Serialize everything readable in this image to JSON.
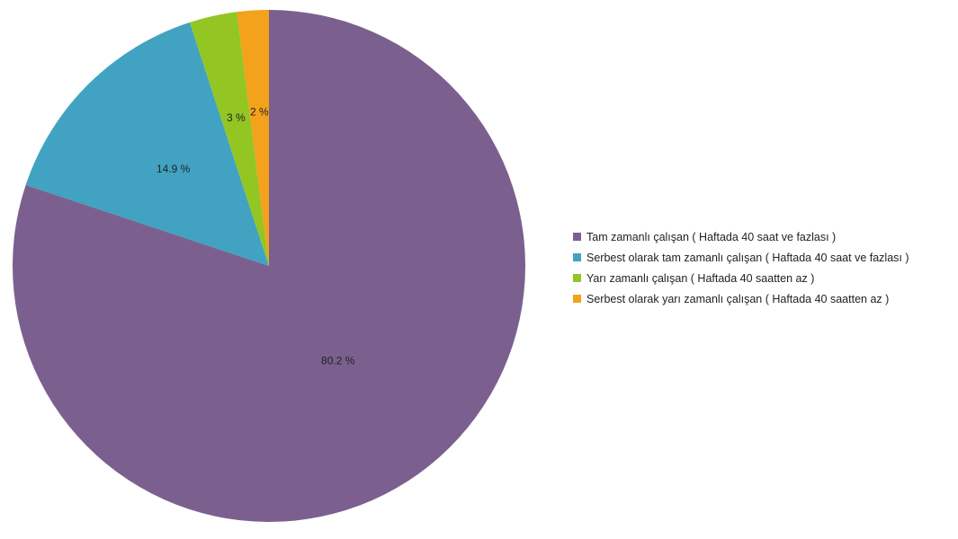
{
  "chart_data": {
    "type": "pie",
    "start_angle_deg": 0,
    "direction": "clockwise",
    "slices": [
      {
        "label": "Tam zamanlı çalışan ( Haftada 40 saat ve fazlası )",
        "value": 80.2,
        "value_label": "80.2 %",
        "color": "#7b608f"
      },
      {
        "label": "Serbest olarak tam zamanlı çalışan ( Haftada 40 saat ve fazlası )",
        "value": 14.9,
        "value_label": "14.9 %",
        "color": "#41a3c1"
      },
      {
        "label": "Yarı zamanlı çalışan ( Haftada 40 saatten az )",
        "value": 3,
        "value_label": "3 %",
        "color": "#93c523"
      },
      {
        "label": "Serbest olarak yarı zamanlı çalışan ( Haftada 40 saatten az )",
        "value": 2,
        "value_label": "2 %",
        "color": "#f4a21c"
      }
    ],
    "legend_position": "right"
  }
}
